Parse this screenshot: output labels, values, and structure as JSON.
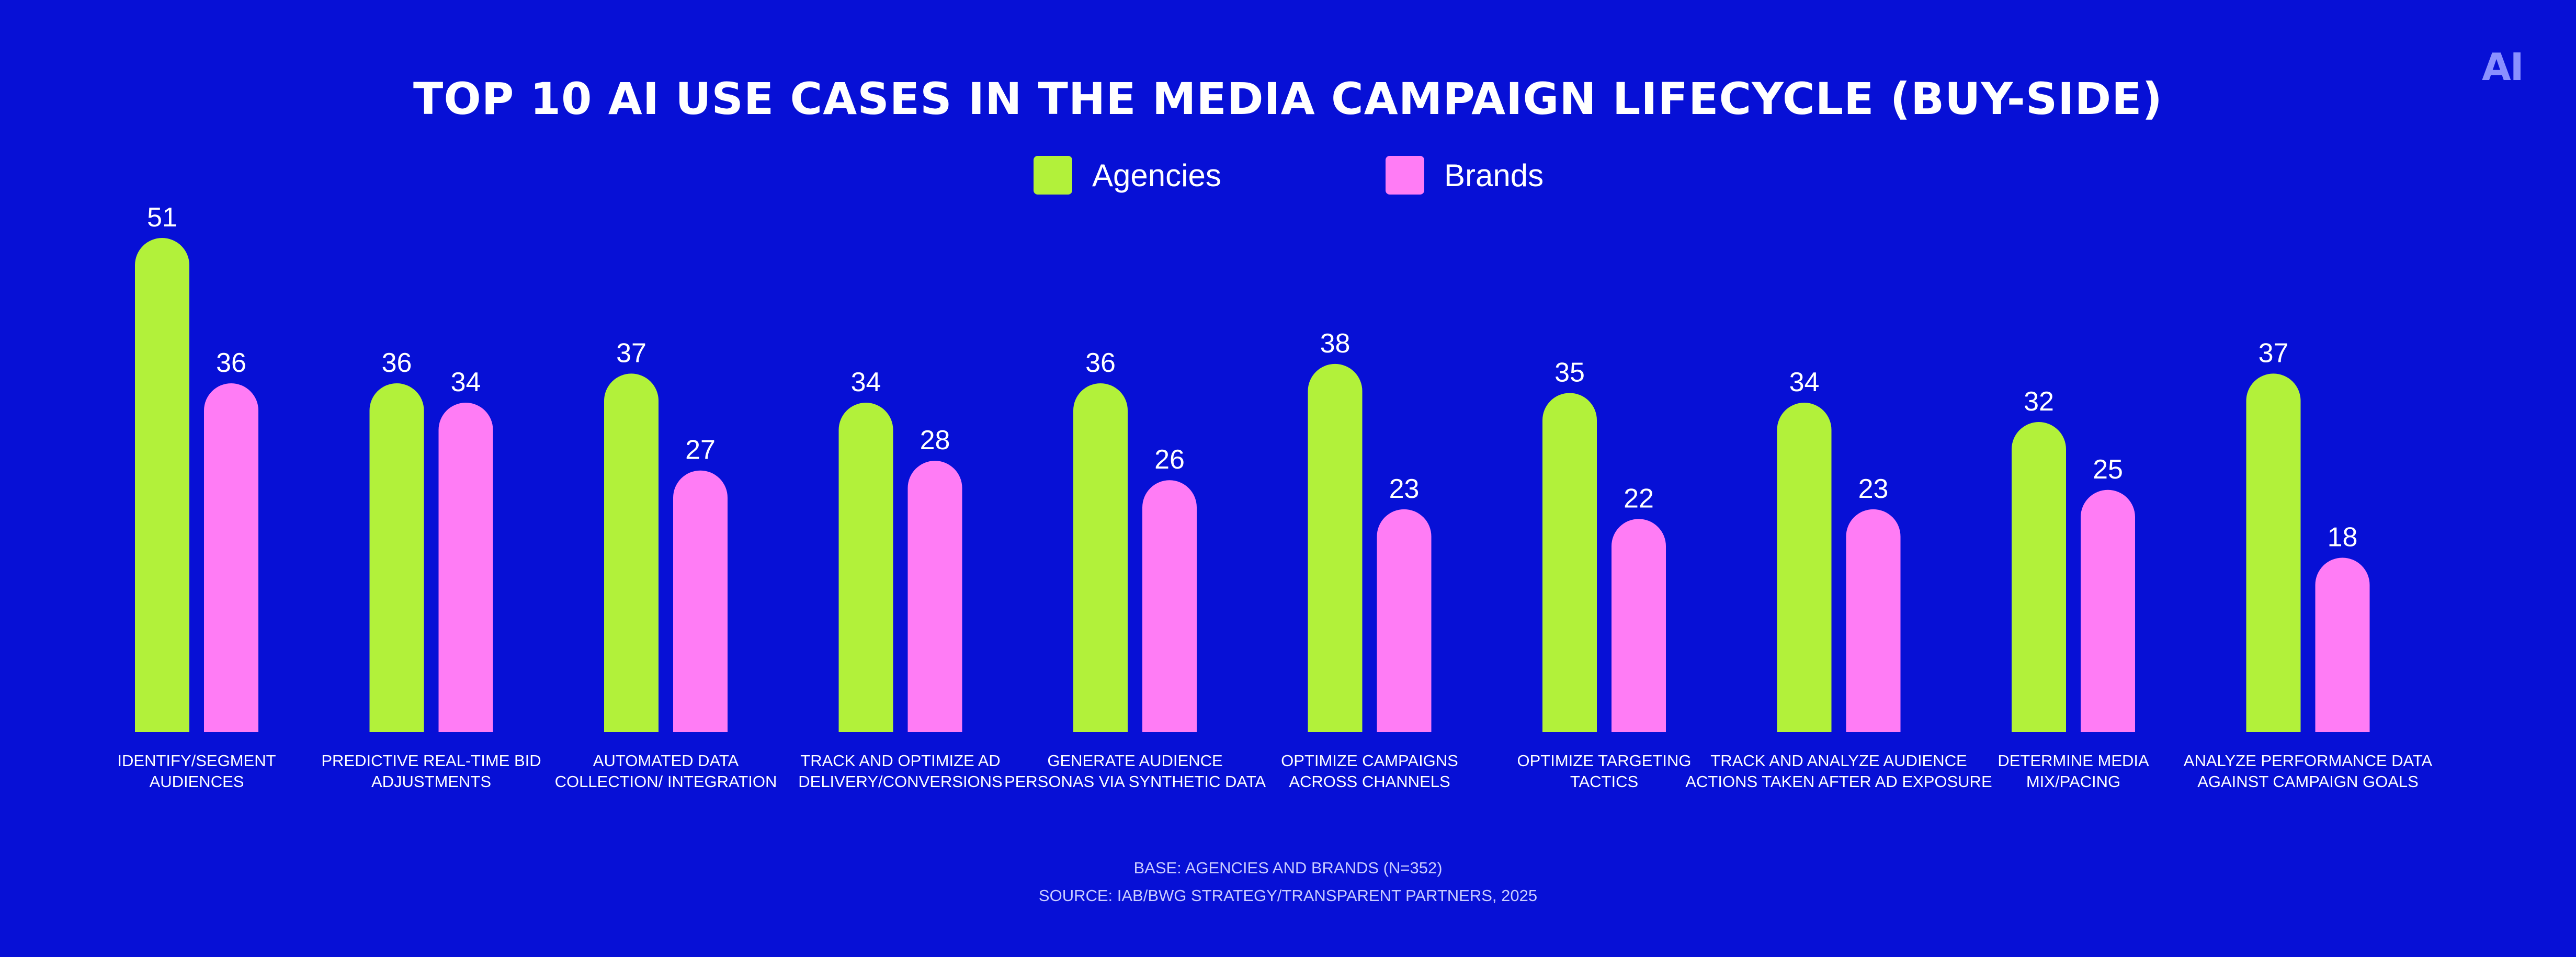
{
  "logo_text": "AI",
  "chart_data": {
    "type": "bar",
    "title": "TOP 10 AI USE CASES IN THE MEDIA CAMPAIGN LIFECYCLE (BUY-SIDE)",
    "categories": [
      [
        "IDENTIFY/SEGMENT",
        "AUDIENCES"
      ],
      [
        "PREDICTIVE REAL-TIME BID",
        "ADJUSTMENTS"
      ],
      [
        "AUTOMATED DATA",
        "COLLECTION/ INTEGRATION"
      ],
      [
        "TRACK AND OPTIMIZE AD",
        "DELIVERY/CONVERSIONS"
      ],
      [
        "GENERATE AUDIENCE",
        "PERSONAS VIA SYNTHETIC DATA"
      ],
      [
        "OPTIMIZE CAMPAIGNS",
        "ACROSS CHANNELS"
      ],
      [
        "OPTIMIZE TARGETING",
        "TACTICS"
      ],
      [
        "TRACK AND ANALYZE AUDIENCE",
        "ACTIONS TAKEN AFTER AD EXPOSURE"
      ],
      [
        "DETERMINE MEDIA",
        "MIX/PACING"
      ],
      [
        "ANALYZE PERFORMANCE DATA",
        "AGAINST CAMPAIGN GOALS"
      ]
    ],
    "series": [
      {
        "name": "Agencies",
        "color": "#b2f13a",
        "values": [
          51,
          36,
          37,
          34,
          36,
          38,
          35,
          34,
          32,
          37
        ]
      },
      {
        "name": "Brands",
        "color": "#ff7cf5",
        "values": [
          36,
          34,
          27,
          28,
          26,
          23,
          22,
          23,
          25,
          18
        ]
      }
    ],
    "ylim": [
      0,
      51
    ],
    "grid": false,
    "legend_position": "top-center"
  },
  "footnotes": {
    "base": "BASE: AGENCIES AND BRANDS (N=352)",
    "source": "SOURCE: IAB/BWG STRATEGY/TRANSPARENT PARTNERS, 2025"
  },
  "colors": {
    "background": "#0710d6",
    "text": "#ffffff"
  }
}
